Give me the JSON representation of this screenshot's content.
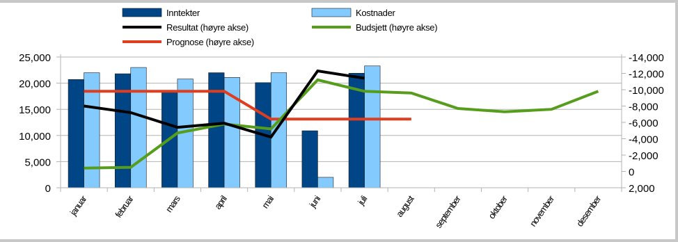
{
  "chart_data": {
    "type": "bar",
    "categories": [
      "januar",
      "februar",
      "mars",
      "april",
      "mai",
      "juni",
      "juli",
      "august",
      "september",
      "oktober",
      "november",
      "desember"
    ],
    "series": [
      {
        "name": "Inntekter",
        "kind": "bar",
        "axis": "left",
        "color": "#004586",
        "values": [
          20700,
          21800,
          18500,
          22000,
          20100,
          10900,
          21900,
          null,
          null,
          null,
          null,
          null
        ]
      },
      {
        "name": "Kostnader",
        "kind": "bar",
        "axis": "left",
        "color": "#83caff",
        "values": [
          22000,
          23000,
          20800,
          21100,
          22000,
          2000,
          23300,
          null,
          null,
          null,
          null,
          null
        ]
      },
      {
        "name": "Resultat (høyre akse)",
        "kind": "line",
        "axis": "right",
        "color": "#000000",
        "values": [
          -8000,
          -7200,
          -5400,
          -5900,
          -4200,
          -12300,
          -11400,
          null,
          null,
          null,
          null,
          null
        ]
      },
      {
        "name": "Budsjett (høyre akse)",
        "kind": "line",
        "axis": "right",
        "color": "#579d1c",
        "values": [
          -400,
          -500,
          -4700,
          -5800,
          -5200,
          -11200,
          -9800,
          -9600,
          -7700,
          -7300,
          -7600,
          -9800
        ]
      },
      {
        "name": "Prognose (høyre akse)",
        "kind": "line",
        "axis": "right",
        "color": "#e03c1e",
        "values": [
          -9800,
          -9800,
          -9800,
          -9800,
          -6400,
          -6400,
          -6400,
          -6400,
          null,
          null,
          null,
          null
        ]
      }
    ],
    "y_left": {
      "range": [
        0,
        25000
      ],
      "ticks": [
        0,
        5000,
        10000,
        15000,
        20000,
        25000
      ],
      "tick_labels": [
        "0",
        "5,000",
        "10,000",
        "15,000",
        "20,000",
        "25,000"
      ]
    },
    "y_right": {
      "range": [
        2000,
        -14000
      ],
      "reversed": true,
      "ticks": [
        2000,
        0,
        -2000,
        -4000,
        -6000,
        -8000,
        -10000,
        -12000,
        -14000
      ],
      "tick_labels": [
        "2,000",
        "0",
        "-2,000",
        "-4,000",
        "-6,000",
        "-8,000",
        "-10,000",
        "-12,000",
        "-14,000"
      ]
    },
    "grid": true,
    "legend_position": "top"
  }
}
